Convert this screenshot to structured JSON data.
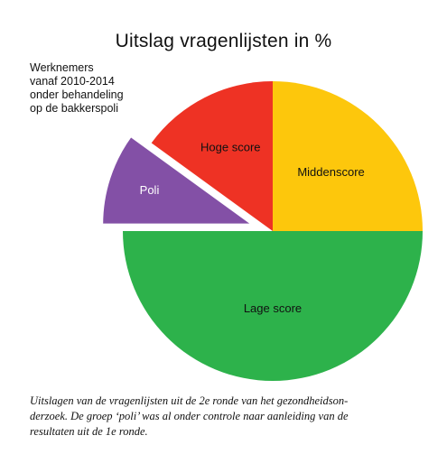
{
  "chart_data": {
    "type": "pie",
    "title": "Uitslag vragenlijsten in %",
    "slices": [
      {
        "label": "Middenscore",
        "value": 25,
        "color": "#fdc70c",
        "exploded": false
      },
      {
        "label": "Lage score",
        "value": 50,
        "color": "#2db24b",
        "exploded": false
      },
      {
        "label": "Poli",
        "value": 10,
        "color": "#8350a6",
        "exploded": true,
        "label_color": "#ffffff"
      },
      {
        "label": "Hoge score",
        "value": 15,
        "color": "#ee3224",
        "exploded": false
      }
    ],
    "start": "top, clockwise"
  },
  "annotation": {
    "lines": [
      "Werknemers",
      "vanaf 2010-2014",
      "onder behandeling",
      "op de bakkerspoli"
    ]
  },
  "caption": {
    "lines": [
      "Uitslagen van de vragenlijsten uit de 2e ronde van het gezondheidson-",
      "derzoek. De groep ‘poli’ was al onder controle naar aanleiding van de",
      "resultaten uit de 1e ronde."
    ]
  }
}
